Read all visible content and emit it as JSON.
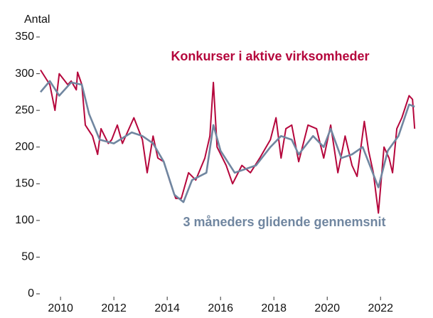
{
  "chart_data": {
    "type": "line",
    "ylabel": "Antal",
    "xlim": [
      2009.25,
      2023.3
    ],
    "xticks": [
      2010,
      2012,
      2014,
      2016,
      2018,
      2020,
      2022
    ],
    "ylim": [
      0,
      350
    ],
    "yticks": [
      0,
      50,
      100,
      150,
      200,
      250,
      300,
      350
    ],
    "series": [
      {
        "name": "Konkurser i aktive virksomheder",
        "color": "#b5063c",
        "x": [
          2009.25,
          2009.6,
          2009.79,
          2009.95,
          2010.27,
          2010.4,
          2010.59,
          2010.64,
          2010.8,
          2010.93,
          2011.2,
          2011.39,
          2011.52,
          2011.79,
          2011.92,
          2012.13,
          2012.32,
          2012.75,
          2013.07,
          2013.25,
          2013.47,
          2013.65,
          2013.87,
          2014.13,
          2014.32,
          2014.53,
          2014.8,
          2015.07,
          2015.41,
          2015.6,
          2015.73,
          2015.87,
          2016.21,
          2016.45,
          2016.8,
          2017.12,
          2017.47,
          2017.87,
          2018.08,
          2018.27,
          2018.45,
          2018.67,
          2018.93,
          2019.28,
          2019.6,
          2019.87,
          2020.13,
          2020.4,
          2020.67,
          2020.93,
          2021.12,
          2021.39,
          2021.55,
          2021.73,
          2021.92,
          2022.13,
          2022.32,
          2022.45,
          2022.61,
          2022.8,
          2023.07,
          2023.2,
          2023.28
        ],
        "values": [
          305,
          285,
          250,
          300,
          285,
          290,
          278,
          302,
          285,
          230,
          215,
          190,
          225,
          205,
          210,
          230,
          205,
          240,
          210,
          165,
          215,
          185,
          180,
          150,
          130,
          130,
          165,
          155,
          185,
          215,
          288,
          200,
          175,
          150,
          175,
          165,
          185,
          210,
          240,
          185,
          225,
          230,
          180,
          230,
          225,
          185,
          230,
          165,
          215,
          175,
          160,
          235,
          195,
          165,
          110,
          200,
          185,
          165,
          225,
          240,
          270,
          265,
          225
        ]
      },
      {
        "name": "3 måneders glidende gennemsnit",
        "color": "#7086a0",
        "x": [
          2009.25,
          2009.6,
          2009.95,
          2010.4,
          2010.8,
          2011.07,
          2011.47,
          2012,
          2012.67,
          2013.07,
          2013.47,
          2013.87,
          2014.27,
          2014.61,
          2014.93,
          2015.47,
          2015.73,
          2016,
          2016.53,
          2017.33,
          2017.87,
          2018.27,
          2018.67,
          2018.93,
          2019.47,
          2019.87,
          2020.13,
          2020.53,
          2020.93,
          2021.33,
          2021.6,
          2021.92,
          2022.27,
          2022.67,
          2023.07,
          2023.28
        ],
        "values": [
          275,
          290,
          270,
          288,
          285,
          245,
          210,
          205,
          220,
          215,
          205,
          180,
          135,
          125,
          155,
          165,
          230,
          195,
          165,
          175,
          200,
          215,
          210,
          190,
          215,
          200,
          225,
          185,
          190,
          200,
          175,
          145,
          195,
          215,
          258,
          255
        ]
      }
    ]
  }
}
